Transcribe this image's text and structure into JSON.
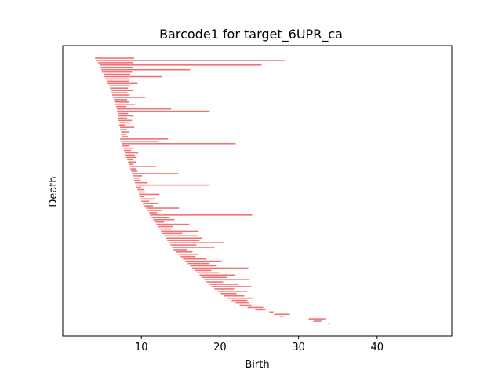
{
  "chart_data": {
    "type": "barcode",
    "title": "Barcode1 for target_6UPR_ca",
    "xlabel": "Birth",
    "ylabel": "Death",
    "xlim": [
      0,
      49.5
    ],
    "xticks": [
      10,
      20,
      30,
      40
    ],
    "yticks": [],
    "grid": false,
    "bar_color": "#f07272",
    "bars": [
      [
        4.1,
        9.1
      ],
      [
        4.3,
        28.2
      ],
      [
        4.5,
        9.0
      ],
      [
        4.7,
        25.3
      ],
      [
        4.8,
        8.9
      ],
      [
        4.9,
        16.2
      ],
      [
        5.0,
        8.8
      ],
      [
        5.2,
        8.6
      ],
      [
        5.3,
        12.6
      ],
      [
        5.4,
        8.5
      ],
      [
        5.6,
        8.4
      ],
      [
        5.7,
        9.5
      ],
      [
        5.9,
        8.6
      ],
      [
        6.0,
        8.3
      ],
      [
        6.1,
        9.0
      ],
      [
        6.2,
        8.2
      ],
      [
        6.3,
        8.5
      ],
      [
        6.4,
        10.5
      ],
      [
        6.5,
        8.2
      ],
      [
        6.6,
        8.4
      ],
      [
        6.7,
        9.2
      ],
      [
        6.8,
        8.1
      ],
      [
        6.9,
        13.8
      ],
      [
        6.9,
        18.7
      ],
      [
        7.0,
        8.3
      ],
      [
        7.0,
        9.0
      ],
      [
        7.1,
        8.2
      ],
      [
        7.1,
        8.8
      ],
      [
        7.2,
        8.5
      ],
      [
        7.2,
        8.0
      ],
      [
        7.3,
        9.1
      ],
      [
        7.3,
        8.2
      ],
      [
        7.4,
        8.4
      ],
      [
        7.4,
        8.1
      ],
      [
        7.5,
        8.3
      ],
      [
        7.3,
        13.4
      ],
      [
        7.4,
        12.1
      ],
      [
        7.5,
        22.0
      ],
      [
        7.6,
        8.5
      ],
      [
        7.7,
        9.0
      ],
      [
        7.8,
        8.7
      ],
      [
        7.9,
        9.6
      ],
      [
        8.0,
        9.2
      ],
      [
        8.1,
        9.4
      ],
      [
        8.2,
        8.9
      ],
      [
        8.3,
        9.3
      ],
      [
        8.4,
        9.0
      ],
      [
        8.5,
        11.9
      ],
      [
        8.6,
        9.3
      ],
      [
        8.7,
        9.5
      ],
      [
        8.8,
        14.7
      ],
      [
        8.9,
        10.1
      ],
      [
        9.0,
        9.8
      ],
      [
        9.1,
        9.9
      ],
      [
        9.2,
        10.8
      ],
      [
        9.3,
        18.7
      ],
      [
        9.4,
        10.0
      ],
      [
        9.5,
        10.3
      ],
      [
        9.6,
        10.5
      ],
      [
        9.7,
        12.3
      ],
      [
        9.8,
        10.4
      ],
      [
        9.9,
        11.8
      ],
      [
        10.0,
        11.0
      ],
      [
        10.2,
        12.2
      ],
      [
        10.4,
        11.5
      ],
      [
        10.6,
        14.8
      ],
      [
        10.8,
        12.6
      ],
      [
        11.0,
        12.0
      ],
      [
        11.1,
        24.1
      ],
      [
        11.3,
        13.6
      ],
      [
        11.5,
        14.2
      ],
      [
        11.7,
        12.9
      ],
      [
        11.9,
        16.1
      ],
      [
        12.1,
        14.0
      ],
      [
        12.3,
        13.8
      ],
      [
        12.5,
        17.3
      ],
      [
        12.7,
        15.2
      ],
      [
        12.9,
        17.2
      ],
      [
        13.1,
        17.7
      ],
      [
        13.3,
        17.4
      ],
      [
        13.5,
        20.5
      ],
      [
        13.7,
        17.0
      ],
      [
        13.9,
        19.3
      ],
      [
        14.1,
        15.8
      ],
      [
        14.4,
        16.5
      ],
      [
        14.7,
        17.2
      ],
      [
        15.0,
        16.9
      ],
      [
        15.3,
        18.2
      ],
      [
        15.6,
        20.2
      ],
      [
        15.9,
        18.7
      ],
      [
        16.2,
        19.6
      ],
      [
        16.5,
        23.6
      ],
      [
        16.8,
        18.9
      ],
      [
        17.1,
        19.9
      ],
      [
        17.4,
        21.9
      ],
      [
        17.7,
        20.9
      ],
      [
        18.0,
        23.8
      ],
      [
        18.3,
        20.4
      ],
      [
        18.6,
        22.3
      ],
      [
        18.9,
        24.0
      ],
      [
        19.3,
        21.8
      ],
      [
        19.7,
        23.5
      ],
      [
        20.1,
        22.1
      ],
      [
        20.5,
        23.1
      ],
      [
        21.0,
        24.2
      ],
      [
        21.5,
        23.5
      ],
      [
        22.0,
        23.7
      ],
      [
        22.5,
        24.0
      ],
      [
        23.5,
        25.5
      ],
      [
        24.5,
        25.8
      ],
      [
        26.3,
        26.8
      ],
      [
        26.9,
        28.9
      ],
      [
        27.6,
        28.1
      ],
      [
        31.3,
        33.4
      ],
      [
        31.9,
        32.9
      ],
      [
        33.8,
        34.0
      ]
    ]
  }
}
